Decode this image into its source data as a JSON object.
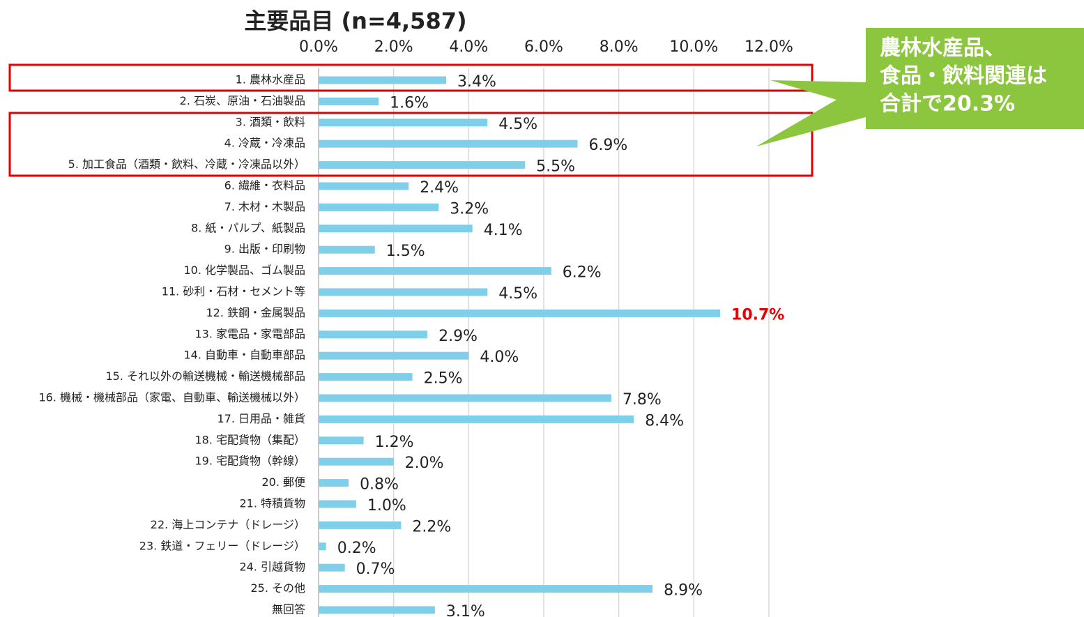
{
  "chart_data": {
    "type": "bar",
    "orientation": "horizontal",
    "title": "主要品目 (n=4,587)",
    "categories": [
      "1. 農林水産品",
      "2. 石炭、原油・石油製品",
      "3. 酒類・飲料",
      "4. 冷蔵・冷凍品",
      "5. 加工食品（酒類・飲料、冷蔵・冷凍品以外）",
      "6. 繊維・衣料品",
      "7. 木材・木製品",
      "8. 紙・パルプ、紙製品",
      "9. 出版・印刷物",
      "10. 化学製品、ゴム製品",
      "11. 砂利・石材・セメント等",
      "12. 鉄鋼・金属製品",
      "13. 家電品・家電部品",
      "14. 自動車・自動車部品",
      "15. それ以外の輸送機械・輸送機械部品",
      "16. 機械・機械部品（家電、自動車、輸送機械以外）",
      "17. 日用品・雑貨",
      "18. 宅配貨物（集配）",
      "19. 宅配貨物（幹線）",
      "20. 郵便",
      "21. 特積貨物",
      "22. 海上コンテナ（ドレージ）",
      "23. 鉄道・フェリー（ドレージ）",
      "24. 引越貨物",
      "25. その他",
      "無回答"
    ],
    "values": [
      3.4,
      1.6,
      4.5,
      6.9,
      5.5,
      2.4,
      3.2,
      4.1,
      1.5,
      6.2,
      4.5,
      10.7,
      2.9,
      4.0,
      2.5,
      7.8,
      8.4,
      1.2,
      2.0,
      0.8,
      1.0,
      2.2,
      0.2,
      0.7,
      8.9,
      3.1
    ],
    "value_labels": [
      "3.4%",
      "1.6%",
      "4.5%",
      "6.9%",
      "5.5%",
      "2.4%",
      "3.2%",
      "4.1%",
      "1.5%",
      "6.2%",
      "4.5%",
      "10.7%",
      "2.9%",
      "4.0%",
      "2.5%",
      "7.8%",
      "8.4%",
      "1.2%",
      "2.0%",
      "0.8%",
      "1.0%",
      "2.2%",
      "0.2%",
      "0.7%",
      "8.9%",
      "3.1%"
    ],
    "color": "#7fcfea",
    "xlim": [
      0,
      12
    ],
    "xticks": [
      {
        "value": 0,
        "label": "0.0%"
      },
      {
        "value": 2,
        "label": "2.0%"
      },
      {
        "value": 4,
        "label": "4.0%"
      },
      {
        "value": 6,
        "label": "6.0%"
      },
      {
        "value": 8,
        "label": "8.0%"
      },
      {
        "value": 10,
        "label": "10.0%"
      },
      {
        "value": 12,
        "label": "12.0%"
      }
    ],
    "grid": true,
    "highlight": {
      "index": 11,
      "color": "#e60000"
    },
    "annotation": [
      "農林水産品、",
      "食品・飲料関連は",
      "合計で20.3%"
    ],
    "annotation_color": "#8cc63f"
  }
}
